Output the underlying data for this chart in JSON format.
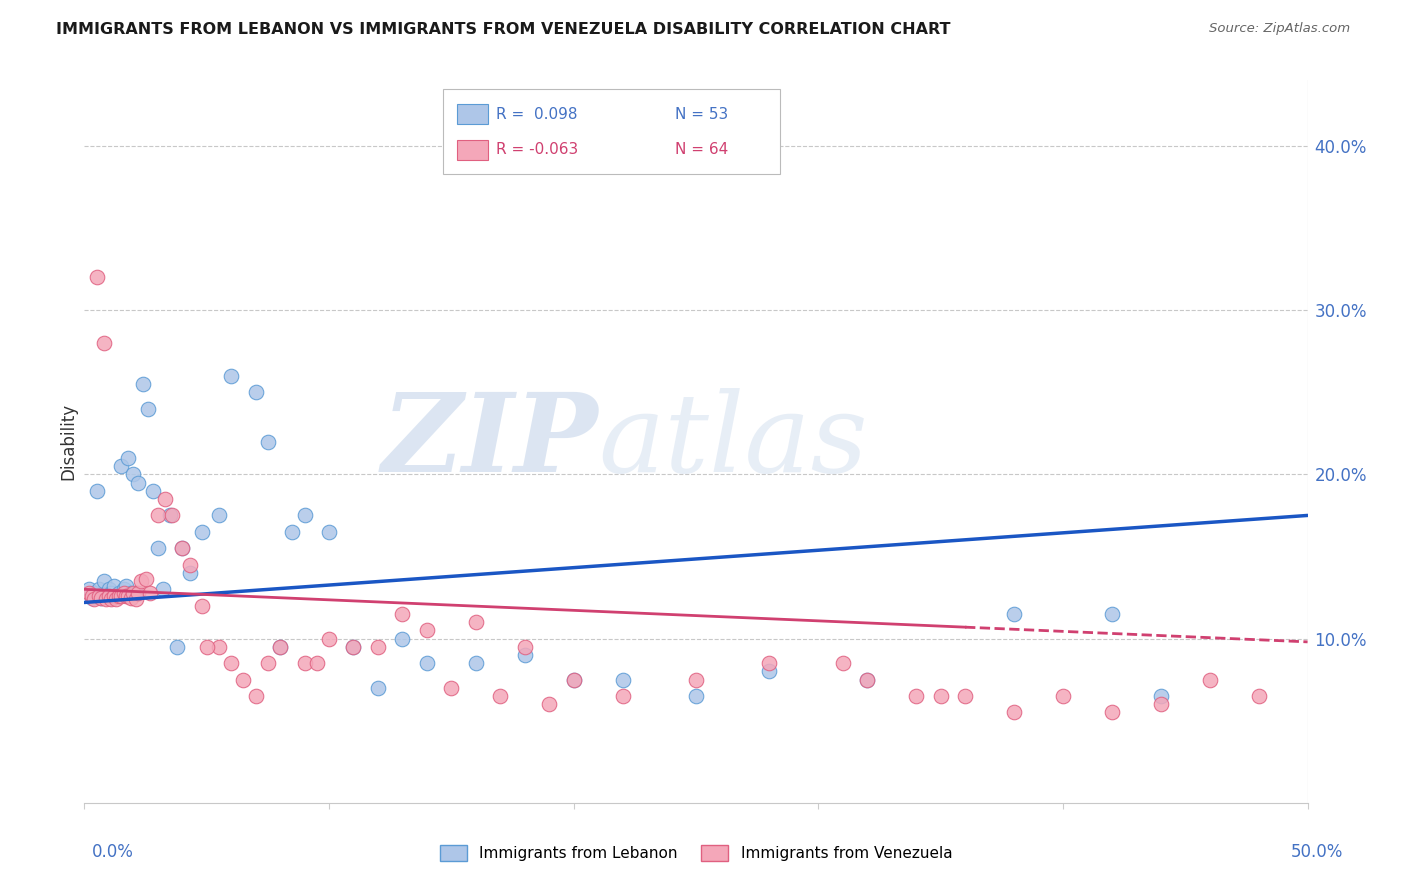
{
  "title": "IMMIGRANTS FROM LEBANON VS IMMIGRANTS FROM VENEZUELA DISABILITY CORRELATION CHART",
  "source": "Source: ZipAtlas.com",
  "ylabel": "Disability",
  "yticks": [
    0.0,
    0.1,
    0.2,
    0.3,
    0.4
  ],
  "ytick_labels": [
    "",
    "10.0%",
    "20.0%",
    "30.0%",
    "40.0%"
  ],
  "xlim": [
    0.0,
    0.5
  ],
  "ylim": [
    0.0,
    0.44
  ],
  "lebanon_color": "#aec6e8",
  "venezuela_color": "#f4a7b9",
  "lebanon_edge": "#5b9bd5",
  "venezuela_edge": "#e06080",
  "trend_lebanon_color": "#1a56c4",
  "trend_venezuela_color": "#d04070",
  "legend_R_lebanon": "R =  0.098",
  "legend_N_lebanon": "N = 53",
  "legend_R_venezuela": "R = -0.063",
  "legend_N_venezuela": "N = 64",
  "watermark_zip": "ZIP",
  "watermark_atlas": "atlas",
  "lebanon_label": "Immigrants from Lebanon",
  "venezuela_label": "Immigrants from Venezuela",
  "trend_leb_x0": 0.0,
  "trend_leb_y0": 0.122,
  "trend_leb_x1": 0.5,
  "trend_leb_y1": 0.175,
  "trend_ven_x0": 0.0,
  "trend_ven_y0": 0.13,
  "trend_ven_x1": 0.5,
  "trend_ven_y1": 0.098,
  "lebanon_x": [
    0.002,
    0.003,
    0.004,
    0.005,
    0.006,
    0.007,
    0.008,
    0.009,
    0.01,
    0.011,
    0.012,
    0.013,
    0.014,
    0.015,
    0.016,
    0.017,
    0.018,
    0.019,
    0.02,
    0.021,
    0.022,
    0.024,
    0.026,
    0.028,
    0.03,
    0.032,
    0.035,
    0.038,
    0.04,
    0.043,
    0.048,
    0.055,
    0.06,
    0.07,
    0.075,
    0.08,
    0.085,
    0.09,
    0.1,
    0.11,
    0.12,
    0.13,
    0.14,
    0.16,
    0.18,
    0.2,
    0.22,
    0.25,
    0.28,
    0.32,
    0.38,
    0.42,
    0.44
  ],
  "lebanon_y": [
    0.13,
    0.125,
    0.128,
    0.19,
    0.13,
    0.125,
    0.135,
    0.127,
    0.13,
    0.128,
    0.132,
    0.126,
    0.128,
    0.205,
    0.13,
    0.132,
    0.21,
    0.128,
    0.2,
    0.128,
    0.195,
    0.255,
    0.24,
    0.19,
    0.155,
    0.13,
    0.175,
    0.095,
    0.155,
    0.14,
    0.165,
    0.175,
    0.26,
    0.25,
    0.22,
    0.095,
    0.165,
    0.175,
    0.165,
    0.095,
    0.07,
    0.1,
    0.085,
    0.085,
    0.09,
    0.075,
    0.075,
    0.065,
    0.08,
    0.075,
    0.115,
    0.115,
    0.065
  ],
  "venezuela_x": [
    0.002,
    0.003,
    0.004,
    0.005,
    0.006,
    0.007,
    0.008,
    0.009,
    0.01,
    0.011,
    0.012,
    0.013,
    0.014,
    0.015,
    0.016,
    0.017,
    0.018,
    0.019,
    0.02,
    0.021,
    0.022,
    0.023,
    0.025,
    0.027,
    0.03,
    0.033,
    0.036,
    0.04,
    0.043,
    0.048,
    0.055,
    0.06,
    0.065,
    0.07,
    0.08,
    0.09,
    0.1,
    0.11,
    0.12,
    0.13,
    0.14,
    0.16,
    0.18,
    0.2,
    0.22,
    0.25,
    0.28,
    0.31,
    0.34,
    0.36,
    0.38,
    0.4,
    0.42,
    0.44,
    0.46,
    0.48,
    0.05,
    0.075,
    0.095,
    0.15,
    0.17,
    0.19,
    0.32,
    0.35
  ],
  "venezuela_y": [
    0.128,
    0.126,
    0.124,
    0.32,
    0.126,
    0.125,
    0.28,
    0.124,
    0.126,
    0.124,
    0.126,
    0.124,
    0.126,
    0.126,
    0.128,
    0.126,
    0.126,
    0.125,
    0.128,
    0.124,
    0.128,
    0.135,
    0.136,
    0.128,
    0.175,
    0.185,
    0.175,
    0.155,
    0.145,
    0.12,
    0.095,
    0.085,
    0.075,
    0.065,
    0.095,
    0.085,
    0.1,
    0.095,
    0.095,
    0.115,
    0.105,
    0.11,
    0.095,
    0.075,
    0.065,
    0.075,
    0.085,
    0.085,
    0.065,
    0.065,
    0.055,
    0.065,
    0.055,
    0.06,
    0.075,
    0.065,
    0.095,
    0.085,
    0.085,
    0.07,
    0.065,
    0.06,
    0.075,
    0.065
  ]
}
